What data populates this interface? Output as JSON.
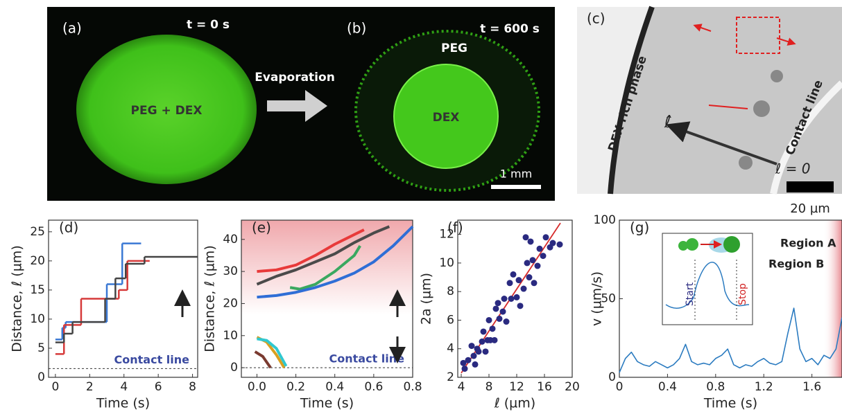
{
  "figure_images": {
    "a_label": "(a)",
    "a_time": "t = 0 s",
    "a_drop": "PEG + DEX",
    "arrow": "Evaporation",
    "b_label": "(b)",
    "b_time": "t = 600 s",
    "b_peg": "PEG",
    "b_dex": "DEX",
    "b_scale": "1 mm",
    "c_label": "(c)",
    "c_phase": "DEX-rich phase",
    "c_contact": "Contact line",
    "c_axis": "ℓ̂",
    "c_origin": "ℓ = 0",
    "c_scale": "20 µm"
  },
  "chart_data": [
    {
      "type": "step",
      "label": "(d)",
      "xlabel": "Time (s)",
      "ylabel": "Distance, ℓ (µm)",
      "annotation": "Contact line",
      "contact_line": 1.5,
      "xlim": [
        -0.4,
        8.3
      ],
      "xticks": [
        0,
        2,
        4,
        6,
        8
      ],
      "ylim": [
        0,
        27
      ],
      "yticks": [
        0,
        5,
        10,
        15,
        20,
        25
      ],
      "series": [
        {
          "color": "#3a78d4",
          "x": [
            0,
            0.4,
            0.6,
            3,
            3.9,
            5
          ],
          "values": [
            6.5,
            8.5,
            9.5,
            16,
            23,
            23
          ]
        },
        {
          "color": "#d63a3a",
          "x": [
            0,
            0.5,
            1.5,
            3.7,
            4.2,
            5.5
          ],
          "values": [
            4,
            9,
            13.5,
            15,
            20,
            20
          ]
        },
        {
          "color": "#444444",
          "x": [
            0,
            0.5,
            1,
            2.9,
            3.5,
            4.1,
            5.2,
            8.3
          ],
          "values": [
            6,
            7.5,
            9.5,
            13.5,
            17,
            19.5,
            20.7,
            20.7
          ]
        }
      ]
    },
    {
      "type": "line",
      "label": "(e)",
      "xlabel": "Time (s)",
      "ylabel": "Distance, ℓ (µm)",
      "annotation": "Contact line",
      "contact_line": 0,
      "xlim": [
        -0.08,
        0.8
      ],
      "xticks": [
        {
          "value": 0,
          "label": "0.0"
        },
        0.2,
        0.4,
        0.6,
        0.8
      ],
      "ylim": [
        -3,
        46
      ],
      "yticks": [
        0,
        10,
        20,
        30,
        40
      ],
      "series": [
        {
          "color": "#e83a3a",
          "x": [
            0,
            0.1,
            0.2,
            0.3,
            0.4,
            0.5,
            0.55
          ],
          "values": [
            30,
            30.5,
            32,
            35,
            38.5,
            41.5,
            43
          ]
        },
        {
          "color": "#4a4a4a",
          "x": [
            0,
            0.1,
            0.2,
            0.3,
            0.4,
            0.5,
            0.6,
            0.68
          ],
          "values": [
            26,
            28.5,
            30.5,
            33,
            35.5,
            39,
            42,
            44
          ]
        },
        {
          "color": "#3aa860",
          "x": [
            0.17,
            0.22,
            0.3,
            0.4,
            0.5,
            0.53
          ],
          "values": [
            25,
            24.5,
            26,
            30,
            35,
            38
          ]
        },
        {
          "color": "#2f6ed6",
          "x": [
            0,
            0.1,
            0.2,
            0.3,
            0.4,
            0.5,
            0.6,
            0.7,
            0.8
          ],
          "values": [
            22,
            22.5,
            23.5,
            25,
            27,
            29.5,
            33,
            38,
            44
          ]
        },
        {
          "color": "#d9a020",
          "x": [
            0,
            0.05,
            0.1,
            0.14
          ],
          "values": [
            9.5,
            8,
            4,
            0
          ]
        },
        {
          "color": "#30c8d0",
          "x": [
            0,
            0.05,
            0.1,
            0.15
          ],
          "values": [
            9,
            8.5,
            6,
            0.5
          ]
        },
        {
          "color": "#7a3a30",
          "x": [
            -0.01,
            0.03,
            0.07
          ],
          "values": [
            5,
            3.5,
            0
          ]
        }
      ]
    },
    {
      "type": "scatter",
      "label": "(f)",
      "xlabel": "ℓ (µm)",
      "ylabel": "2a (µm)",
      "xlim": [
        3.5,
        20
      ],
      "xticks": [
        4,
        8,
        12,
        16,
        20
      ],
      "ylim": [
        2,
        13
      ],
      "yticks": [
        2,
        4,
        6,
        8,
        10,
        12
      ],
      "color": "#2a2a80",
      "fit_color": "#d62a2a",
      "fit": {
        "x": [
          4,
          18.3
        ],
        "values": [
          2.3,
          12.8
        ]
      },
      "x": [
        4.3,
        4.5,
        5,
        5.5,
        5.8,
        6,
        6.3,
        6.5,
        7,
        7.2,
        7.5,
        7.8,
        8,
        8.2,
        8.5,
        8.8,
        9,
        9.3,
        9.5,
        10,
        10.2,
        10.5,
        11,
        11.2,
        11.5,
        12,
        12.3,
        12.5,
        13,
        13.3,
        13.5,
        13.8,
        14,
        14.3,
        14.5,
        15,
        15.3,
        15.8,
        16.2,
        16.8,
        17.2,
        18.2
      ],
      "values": [
        3,
        2.6,
        3.2,
        4.2,
        3.5,
        2.9,
        4,
        3.8,
        4.5,
        5.2,
        3.8,
        4.6,
        6,
        4.6,
        5.4,
        4.6,
        6.8,
        7.2,
        6.1,
        6.6,
        7.5,
        5.9,
        8.6,
        7.5,
        9.2,
        7.6,
        8.8,
        7,
        8.2,
        11.8,
        10,
        9,
        11.5,
        10.2,
        8.6,
        9.8,
        11,
        10.5,
        11.8,
        11.1,
        11.4,
        11.3
      ]
    },
    {
      "type": "line",
      "label": "(g)",
      "xlabel": "Time (s)",
      "ylabel": "v (µm/s)",
      "region_a": "Region A",
      "region_b": "Region B",
      "region_b_start": 1.75,
      "inset_start": "Start",
      "inset_stop": "Stop",
      "xlim": [
        0,
        1.85
      ],
      "xticks": [
        0,
        0.4,
        0.8,
        1.2,
        1.6
      ],
      "ylim": [
        0,
        100
      ],
      "yticks": [
        0,
        50,
        100
      ],
      "series": [
        {
          "color": "#2b7bc0",
          "x": [
            0,
            0.05,
            0.1,
            0.15,
            0.2,
            0.25,
            0.3,
            0.35,
            0.4,
            0.45,
            0.5,
            0.55,
            0.6,
            0.65,
            0.7,
            0.75,
            0.8,
            0.85,
            0.9,
            0.95,
            1.0,
            1.05,
            1.1,
            1.15,
            1.2,
            1.25,
            1.3,
            1.35,
            1.4,
            1.45,
            1.5,
            1.55,
            1.6,
            1.65,
            1.7,
            1.75,
            1.8,
            1.85
          ],
          "values": [
            3,
            12,
            16,
            10,
            8,
            7,
            10,
            8,
            6,
            8,
            12,
            21,
            10,
            8,
            9,
            8,
            12,
            14,
            18,
            8,
            6,
            8,
            7,
            10,
            12,
            9,
            8,
            10,
            28,
            44,
            18,
            10,
            12,
            8,
            14,
            12,
            18,
            38
          ]
        }
      ]
    }
  ]
}
